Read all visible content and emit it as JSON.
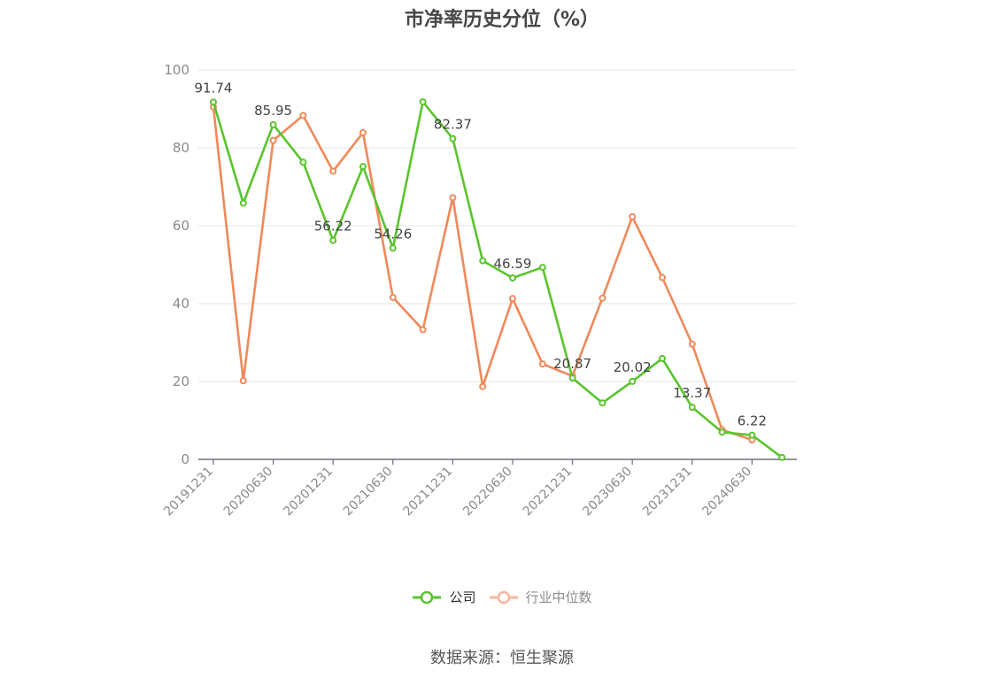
{
  "chart_data": {
    "type": "line",
    "title": "市净率历史分位（%）",
    "ylim": [
      0,
      100
    ],
    "yticks": [
      0,
      20,
      40,
      60,
      80,
      100
    ],
    "x": [
      "20191231",
      "20200331",
      "20200630",
      "20200930",
      "20201231",
      "20210331",
      "20210630",
      "20210930",
      "20211231",
      "20220331",
      "20220630",
      "20220930",
      "20221231",
      "20230331",
      "20230630",
      "20230930",
      "20231231",
      "20240331",
      "20240630",
      "20240930"
    ],
    "xtick_labels": [
      "20191231",
      "20200630",
      "20201231",
      "20210630",
      "20211231",
      "20220630",
      "20221231",
      "20230630",
      "20231231",
      "20240630"
    ],
    "series": [
      {
        "name": "公司",
        "color": "#5ac42c",
        "values": [
          91.74,
          65.8,
          85.95,
          76.3,
          56.22,
          75.2,
          54.26,
          91.8,
          82.37,
          51.0,
          46.59,
          49.3,
          20.87,
          14.5,
          20.02,
          25.9,
          13.37,
          7.0,
          6.22,
          0.5
        ],
        "labeled": [
          "91.74",
          null,
          "85.95",
          null,
          "56.22",
          null,
          "54.26",
          null,
          "82.37",
          null,
          "46.59",
          null,
          "20.87",
          null,
          "20.02",
          null,
          "13.37",
          null,
          "6.22",
          null
        ]
      },
      {
        "name": "行业中位数",
        "color": "#f0895a",
        "values": [
          90.5,
          20.2,
          81.9,
          88.3,
          74.0,
          83.9,
          41.6,
          33.3,
          67.2,
          18.7,
          41.3,
          24.5,
          21.4,
          41.4,
          62.3,
          46.7,
          29.6,
          7.6,
          5.0,
          null
        ]
      }
    ],
    "grid": true,
    "legend_position": "bottom-center"
  },
  "legend": [
    {
      "label": "公司",
      "icon": "circle-line-icon",
      "color": "#5ac42c"
    },
    {
      "label": "行业中位数",
      "icon": "circle-line-icon",
      "color": "#f9b49a"
    }
  ],
  "source": "数据来源：恒生聚源"
}
